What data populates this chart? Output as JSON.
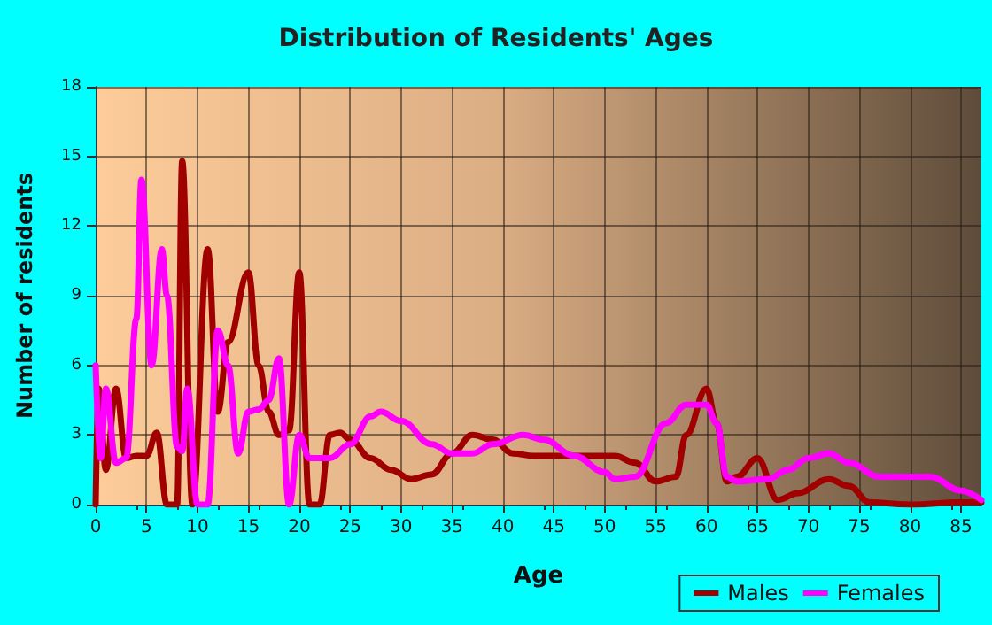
{
  "chart_data": {
    "type": "line",
    "title": "Distribution of Residents' Ages",
    "xlabel": "Age",
    "ylabel": "Number of residents",
    "xlim": [
      0,
      87
    ],
    "xticks": [
      0,
      5,
      10,
      15,
      20,
      25,
      30,
      35,
      40,
      45,
      50,
      55,
      60,
      65,
      70,
      75,
      80,
      85
    ],
    "ylim": [
      0,
      18
    ],
    "yticks": [
      0,
      3,
      6,
      9,
      12,
      15,
      18
    ],
    "grid": true,
    "legend": "bottom right",
    "marker": "none",
    "line_style": "solid",
    "series": [
      {
        "name": "Males",
        "color": "#a00000",
        "x": [
          0,
          0.3,
          1,
          2,
          3,
          4,
          5,
          6,
          7,
          8,
          8.5,
          9.5,
          11,
          12,
          13,
          15,
          16,
          17,
          18,
          19,
          20,
          21,
          22,
          23,
          24,
          25,
          27,
          29,
          31,
          33,
          35,
          37,
          39,
          41,
          43,
          47,
          51,
          53,
          55,
          57,
          58,
          60,
          61,
          62,
          63,
          65,
          67,
          69,
          72,
          74,
          76,
          80,
          85,
          87
        ],
        "values": [
          0,
          5,
          1.5,
          5,
          2,
          2.1,
          2.1,
          3.1,
          0,
          0,
          14.8,
          0,
          11,
          4,
          7,
          10,
          6,
          4,
          3,
          3.2,
          10,
          0,
          0,
          3,
          3.1,
          2.8,
          2,
          1.5,
          1.1,
          1.3,
          2.2,
          3,
          2.8,
          2.2,
          2.1,
          2.1,
          2.1,
          1.8,
          1,
          1.2,
          3,
          5,
          3.5,
          1,
          1.2,
          2,
          0.2,
          0.5,
          1.1,
          0.8,
          0.1,
          0,
          0.1,
          0.1
        ]
      },
      {
        "name": "Females",
        "color": "#ff00ff",
        "x": [
          0,
          0.5,
          1,
          2,
          3,
          4,
          4.5,
          5.5,
          6.5,
          7,
          8,
          8.5,
          9,
          10,
          11,
          12,
          13,
          14,
          15,
          16,
          17,
          18,
          19,
          20,
          21,
          23,
          25,
          27,
          28,
          30,
          33,
          35,
          37,
          39,
          42,
          44,
          47,
          50,
          51,
          53,
          56,
          58,
          60,
          61,
          62,
          63,
          66,
          68,
          70,
          72,
          74,
          77,
          80,
          82,
          85,
          87
        ],
        "values": [
          6,
          2,
          5,
          1.8,
          2,
          8,
          14,
          6,
          11,
          9,
          2.5,
          2.3,
          5,
          0,
          0,
          7.5,
          6,
          2.2,
          4,
          4.1,
          4.5,
          6.3,
          0,
          3,
          2,
          2,
          2.6,
          3.8,
          4,
          3.6,
          2.6,
          2.2,
          2.2,
          2.6,
          3,
          2.8,
          2.1,
          1.4,
          1.1,
          1.2,
          3.5,
          4.3,
          4.3,
          3.5,
          1.2,
          1,
          1.1,
          1.5,
          2,
          2.2,
          1.8,
          1.2,
          1.2,
          1.2,
          0.6,
          0.2
        ]
      }
    ]
  }
}
